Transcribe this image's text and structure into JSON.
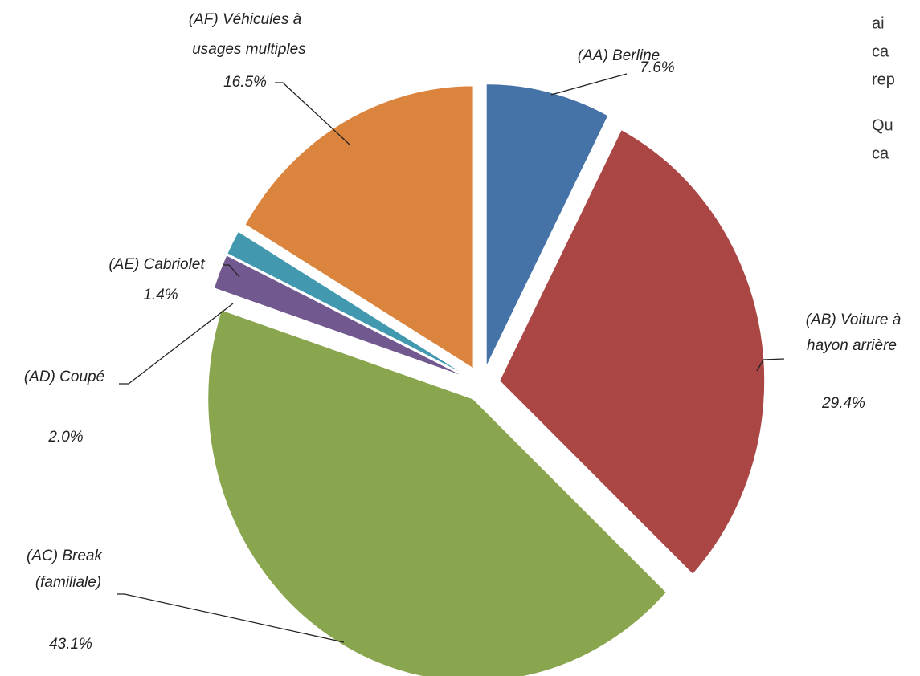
{
  "chart_data": {
    "type": "pie",
    "categories": [
      [
        "(AA) Berline"
      ],
      [
        "(AB) Voiture à",
        "hayon arrière"
      ],
      [
        "(AC) Break",
        "(familiale)"
      ],
      [
        "(AD) Coupé"
      ],
      [
        "(AE) Cabriolet"
      ],
      [
        "(AF) Véhicules à",
        "usages multiples"
      ]
    ],
    "values": [
      7.6,
      29.4,
      43.1,
      2.0,
      1.4,
      16.5
    ],
    "value_labels": [
      "7.6%",
      "29.4%",
      "43.1%",
      "2.0%",
      "1.4%",
      "16.5%"
    ],
    "colors": [
      "#4572a7",
      "#aa4643",
      "#89a54e",
      "#71588f",
      "#4198af",
      "#db843d"
    ]
  },
  "side_text": [
    "ai",
    "ca",
    "rep",
    "Qu",
    "ca"
  ]
}
